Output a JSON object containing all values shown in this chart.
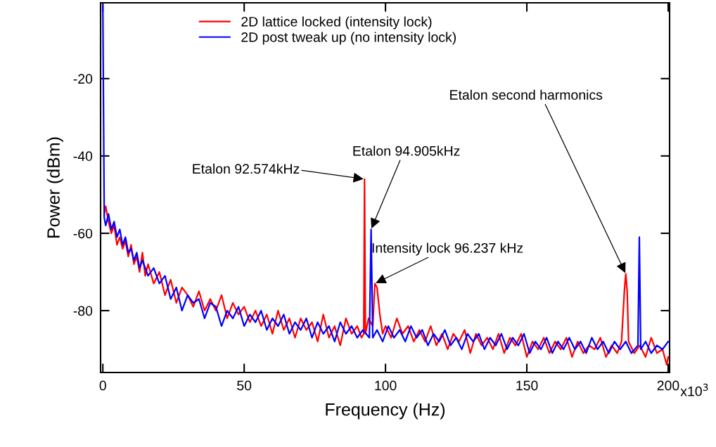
{
  "chart_data": {
    "type": "line",
    "xlabel": "Frequency (Hz)",
    "ylabel": "Power (dBm)",
    "xlim": [
      -0.8,
      200.5
    ],
    "ylim": [
      -96,
      -0.4
    ],
    "xticks": [
      0,
      50,
      100,
      150,
      200
    ],
    "yticks": [
      -20,
      -40,
      -60,
      -80
    ],
    "grid": false,
    "legend": "top",
    "line_style": "solid",
    "marker": "none",
    "series": [
      {
        "name": "2D lattice locked (intensity lock)",
        "color": "#ff0000",
        "x": [
          0.5,
          1,
          2,
          3,
          4,
          5,
          6,
          7,
          8,
          9,
          10,
          11,
          12,
          13,
          14,
          15,
          16,
          18,
          20,
          22,
          24,
          26,
          28,
          30,
          32,
          34,
          36,
          38,
          40,
          42,
          44,
          46,
          48,
          50,
          52,
          54,
          56,
          58,
          60,
          62,
          64,
          66,
          68,
          70,
          72,
          74,
          76,
          78,
          80,
          82,
          84,
          86,
          88,
          90,
          91.5,
          92.3,
          92.574,
          92.9,
          94,
          95.5,
          96.237,
          97,
          98,
          99,
          100,
          102,
          104,
          106,
          108,
          110,
          112,
          114,
          116,
          118,
          120,
          122,
          124,
          126,
          128,
          130,
          132,
          134,
          136,
          138,
          140,
          142,
          144,
          146,
          148,
          150,
          152,
          154,
          156,
          158,
          160,
          162,
          164,
          166,
          168,
          170,
          172,
          174,
          176,
          178,
          180,
          182,
          183.5,
          184.5,
          185,
          185.5,
          186,
          188,
          190,
          192,
          194,
          196,
          198,
          199.5,
          200
        ],
        "values": [
          -55,
          -53,
          -57,
          -60,
          -58,
          -63,
          -61,
          -64,
          -62,
          -66,
          -63,
          -68,
          -66,
          -70,
          -65,
          -71,
          -68,
          -73,
          -70,
          -76,
          -72,
          -78,
          -74,
          -76,
          -79,
          -75,
          -80,
          -77,
          -80,
          -76,
          -82,
          -78,
          -81,
          -79,
          -83,
          -80,
          -84,
          -81,
          -86,
          -80,
          -85,
          -82,
          -87,
          -82,
          -85,
          -83,
          -88,
          -81,
          -87,
          -84,
          -89,
          -82,
          -86,
          -84,
          -87,
          -86,
          -46,
          -86,
          -82,
          -84,
          -73,
          -74,
          -81,
          -86,
          -84,
          -87,
          -82,
          -86,
          -84,
          -88,
          -85,
          -88,
          -84,
          -89,
          -86,
          -90,
          -86,
          -88,
          -85,
          -91,
          -86,
          -89,
          -87,
          -90,
          -86,
          -91,
          -87,
          -89,
          -86,
          -92,
          -88,
          -90,
          -87,
          -91,
          -88,
          -90,
          -87,
          -92,
          -88,
          -91,
          -89,
          -90,
          -87,
          -92,
          -89,
          -91,
          -88,
          -75,
          -70.5,
          -75,
          -88,
          -91,
          -89,
          -92,
          -87,
          -91,
          -90,
          -94,
          -92
        ]
      },
      {
        "name": "2D post tweak up (no intensity lock)",
        "color": "#0000ff",
        "x": [
          0,
          0.5,
          1,
          2,
          3,
          4,
          5,
          6,
          7,
          8,
          9,
          10,
          11,
          12,
          13,
          14,
          16,
          18,
          20,
          22,
          24,
          26,
          28,
          30,
          32,
          34,
          36,
          38,
          40,
          42,
          44,
          46,
          48,
          50,
          52,
          54,
          56,
          58,
          60,
          62,
          64,
          66,
          68,
          70,
          72,
          74,
          76,
          78,
          80,
          82,
          84,
          86,
          88,
          90,
          92,
          94.3,
          94.905,
          95.5,
          97,
          99,
          101,
          103,
          105,
          107,
          109,
          111,
          113,
          115,
          117,
          119,
          121,
          123,
          125,
          127,
          129,
          131,
          133,
          135,
          137,
          139,
          141,
          143,
          145,
          147,
          149,
          151,
          153,
          155,
          157,
          159,
          161,
          163,
          165,
          167,
          169,
          171,
          173,
          175,
          177,
          179,
          181,
          183,
          185,
          187,
          189.3,
          189.8,
          190.3,
          192,
          194,
          196,
          198,
          200
        ],
        "values": [
          -1,
          -56,
          -58,
          -55,
          -59,
          -57,
          -61,
          -59,
          -63,
          -61,
          -65,
          -64,
          -67,
          -65,
          -69,
          -67,
          -71,
          -69,
          -73,
          -71,
          -77,
          -74,
          -80,
          -76,
          -78,
          -77,
          -82,
          -78,
          -79,
          -84,
          -80,
          -82,
          -79,
          -84,
          -81,
          -83,
          -80,
          -85,
          -82,
          -84,
          -81,
          -86,
          -83,
          -85,
          -82,
          -87,
          -83,
          -86,
          -84,
          -88,
          -83,
          -86,
          -84,
          -87,
          -85,
          -87,
          -59,
          -87,
          -85,
          -88,
          -84,
          -87,
          -85,
          -88,
          -84,
          -87,
          -85,
          -89,
          -86,
          -88,
          -85,
          -89,
          -87,
          -90,
          -86,
          -88,
          -86,
          -90,
          -87,
          -89,
          -86,
          -90,
          -87,
          -89,
          -86,
          -91,
          -88,
          -90,
          -87,
          -91,
          -88,
          -90,
          -87,
          -90,
          -88,
          -91,
          -87,
          -90,
          -88,
          -91,
          -88,
          -90,
          -88,
          -91,
          -89,
          -61,
          -90,
          -88,
          -91,
          -89,
          -90,
          -88
        ]
      }
    ],
    "annotations": [
      {
        "text": "Etalon 92.574kHz",
        "x": 92.574,
        "y": -46
      },
      {
        "text": "Etalon 94.905kHz",
        "x": 94.905,
        "y": -59
      },
      {
        "text": "Intensity lock 96.237 kHz",
        "x": 96.237,
        "y": -73
      },
      {
        "text": "Etalon second harmonics",
        "x": 185,
        "y": -70.5
      },
      "x10$^{3}$"
    ]
  }
}
